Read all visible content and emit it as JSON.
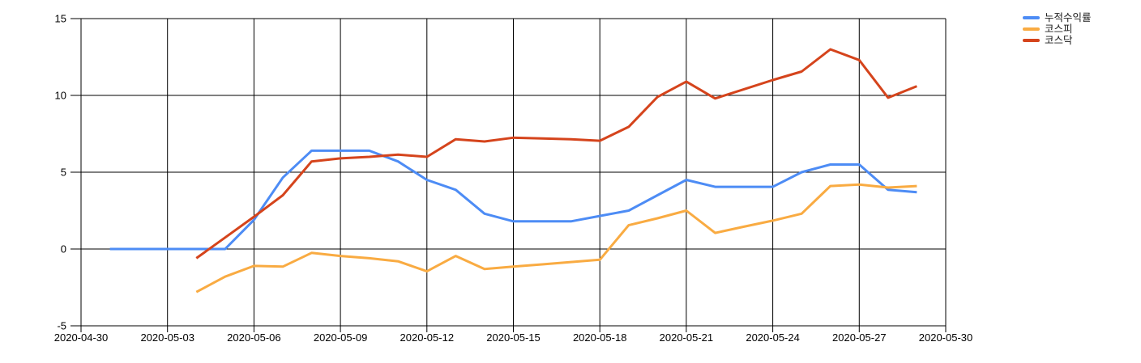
{
  "chart_data": {
    "type": "line",
    "title": "",
    "xlabel": "",
    "ylabel": "",
    "grid": true,
    "legend_position": "right-top",
    "x_tick_labels": [
      "2020-04-30",
      "2020-05-03",
      "2020-05-06",
      "2020-05-09",
      "2020-05-12",
      "2020-05-15",
      "2020-05-18",
      "2020-05-21",
      "2020-05-24",
      "2020-05-27",
      "2020-05-30"
    ],
    "y_ticks": [
      "-5",
      "0",
      "5",
      "10",
      "15"
    ],
    "y_range": [
      -5,
      15
    ],
    "dates": [
      "2020-05-01",
      "2020-05-02",
      "2020-05-03",
      "2020-05-04",
      "2020-05-05",
      "2020-05-06",
      "2020-05-07",
      "2020-05-08",
      "2020-05-09",
      "2020-05-10",
      "2020-05-11",
      "2020-05-12",
      "2020-05-13",
      "2020-05-14",
      "2020-05-15",
      "2020-05-16",
      "2020-05-17",
      "2020-05-18",
      "2020-05-19",
      "2020-05-20",
      "2020-05-21",
      "2020-05-22",
      "2020-05-23",
      "2020-05-24",
      "2020-05-25",
      "2020-05-26",
      "2020-05-27",
      "2020-05-28",
      "2020-05-29"
    ],
    "series": [
      {
        "name": "누적수익률",
        "color": "#4D8CF5",
        "values": [
          0,
          0,
          0,
          0,
          0,
          1.9,
          4.65,
          6.4,
          6.4,
          6.4,
          5.7,
          4.5,
          3.85,
          2.3,
          1.8,
          1.8,
          1.8,
          2.15,
          2.5,
          3.5,
          4.5,
          4.05,
          4.05,
          4.05,
          5.0,
          5.5,
          5.5,
          3.85,
          3.7
        ]
      },
      {
        "name": "코스피",
        "color": "#F9AB42",
        "values": [
          null,
          null,
          null,
          -2.8,
          -1.8,
          -1.1,
          -1.15,
          -0.25,
          -0.45,
          -0.6,
          -0.8,
          -1.45,
          -0.45,
          -1.3,
          -1.15,
          -1.0,
          -0.85,
          -0.7,
          1.55,
          2.0,
          2.5,
          1.05,
          1.45,
          1.85,
          2.3,
          4.1,
          4.2,
          4.0,
          4.1
        ]
      },
      {
        "name": "코스닥",
        "color": "#D5441C",
        "values": [
          null,
          null,
          null,
          -0.6,
          0.75,
          2.1,
          3.5,
          5.7,
          5.9,
          6.0,
          6.15,
          6.0,
          7.15,
          7.0,
          7.25,
          7.2,
          7.15,
          7.05,
          7.95,
          9.9,
          10.9,
          9.8,
          10.4,
          11.0,
          11.55,
          13.0,
          12.3,
          9.85,
          10.6
        ]
      }
    ],
    "colors": {
      "gridline": "#000000",
      "axis_text": "#000000",
      "background": "#ffffff"
    }
  }
}
